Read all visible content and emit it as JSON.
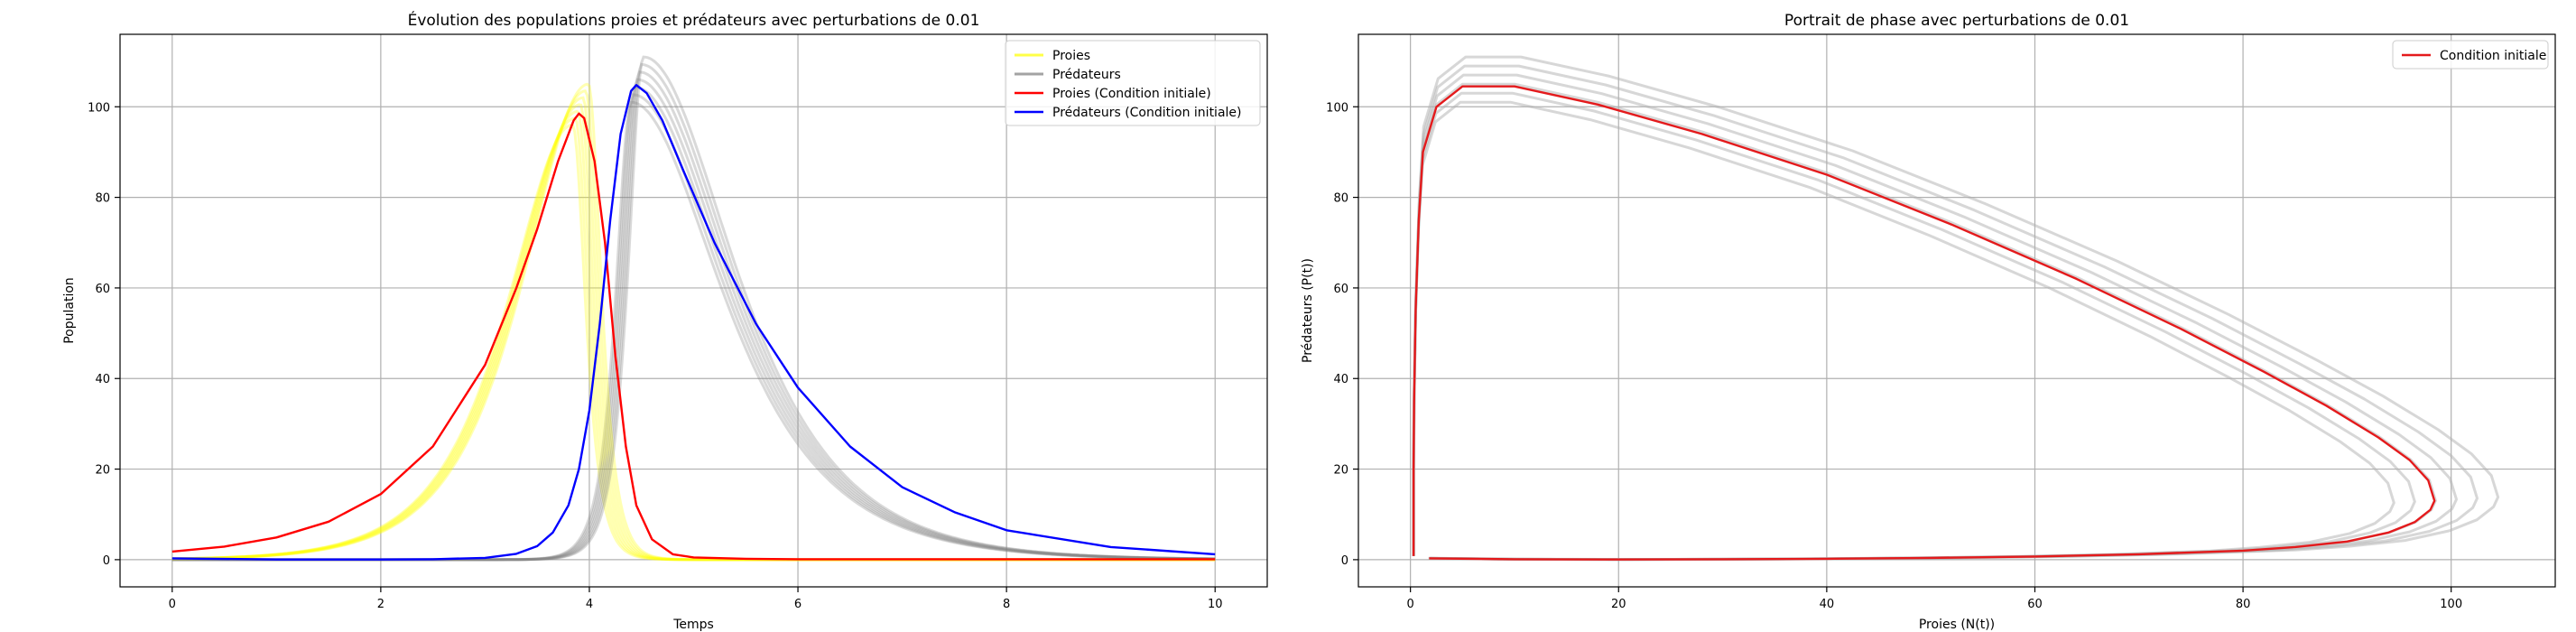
{
  "chart_data": [
    {
      "type": "line",
      "title": "Évolution des populations proies et prédateurs avec perturbations de 0.01",
      "xlabel": "Temps",
      "ylabel": "Population",
      "xlim": [
        -0.5,
        10.5
      ],
      "ylim": [
        -6,
        116
      ],
      "xticks": [
        0,
        2,
        4,
        6,
        8,
        10
      ],
      "yticks": [
        0,
        20,
        40,
        60,
        80,
        100
      ],
      "grid": true,
      "legend_position": "top-right",
      "legend": [
        "Proies",
        "Prédateurs",
        "Proies (Condition initiale)",
        "Prédateurs (Condition initiale)"
      ],
      "series": [
        {
          "name": "Proies",
          "color": "#ffff00",
          "alpha": 0.3,
          "peak_time": [
            3.84,
            3.99
          ],
          "peak_value": [
            96,
            105
          ]
        },
        {
          "name": "Prédateurs",
          "color": "#808080",
          "alpha": 0.3,
          "peak_time": [
            4.4,
            4.52
          ],
          "peak_value": [
            101,
            111
          ]
        },
        {
          "name": "Proies (Condition initiale)",
          "color": "#ff0000",
          "x": [
            0,
            0.5,
            1,
            1.5,
            2,
            2.5,
            3,
            3.3,
            3.5,
            3.7,
            3.85,
            3.9,
            3.95,
            4.05,
            4.15,
            4.25,
            4.35,
            4.45,
            4.6,
            4.8,
            5.0,
            5.5,
            6,
            7,
            8,
            10
          ],
          "values": [
            1.8,
            2.9,
            4.9,
            8.4,
            14.5,
            25,
            43,
            60,
            73,
            88,
            97,
            98.5,
            97.5,
            88,
            70,
            45,
            25,
            12,
            4.5,
            1.2,
            0.5,
            0.2,
            0.1,
            0.1,
            0.1,
            0.1
          ]
        },
        {
          "name": "Prédateurs (Condition initiale)",
          "color": "#0000ff",
          "x": [
            0,
            1,
            2,
            2.5,
            3,
            3.3,
            3.5,
            3.65,
            3.8,
            3.9,
            4.0,
            4.1,
            4.2,
            4.3,
            4.4,
            4.45,
            4.55,
            4.7,
            4.9,
            5.2,
            5.6,
            6,
            6.5,
            7,
            7.5,
            8,
            9,
            10
          ],
          "values": [
            0.3,
            0.05,
            0.05,
            0.1,
            0.4,
            1.3,
            3,
            6,
            12,
            20,
            33,
            52,
            75,
            94,
            103.5,
            104.8,
            103,
            97,
            86,
            70,
            52,
            38,
            25,
            16,
            10.5,
            6.5,
            2.8,
            1.2
          ]
        }
      ]
    },
    {
      "type": "line",
      "title": "Portrait de phase avec perturbations de 0.01",
      "xlabel": "Proies (N(t))",
      "ylabel": "Prédateurs (P(t))",
      "xlim": [
        -5,
        110
      ],
      "ylim": [
        -6,
        116
      ],
      "xticks": [
        0,
        20,
        40,
        60,
        80,
        100
      ],
      "yticks": [
        0,
        20,
        40,
        60,
        80,
        100
      ],
      "grid": true,
      "legend_position": "top-right",
      "legend": [
        "Condition initiale"
      ],
      "series": [
        {
          "name": "Condition initiale",
          "color": "#e41a1c",
          "x": [
            1.8,
            10,
            20,
            30,
            40,
            50,
            60,
            70,
            80,
            85,
            90,
            94,
            96.5,
            98,
            98.4,
            97.8,
            96,
            93,
            88,
            82,
            74,
            64,
            52,
            40,
            28,
            18,
            10,
            5,
            2.5,
            1.2,
            0.8,
            0.5,
            0.35,
            0.3,
            0.3,
            0.3,
            0.3
          ],
          "values": [
            0.3,
            0.1,
            0.05,
            0.1,
            0.2,
            0.4,
            0.7,
            1.2,
            2.0,
            2.8,
            4.0,
            6.0,
            8.3,
            11,
            13,
            17.5,
            22,
            27,
            34,
            41.5,
            51,
            62,
            74,
            85,
            94,
            100.5,
            104.5,
            104.5,
            100,
            90,
            75,
            55,
            35,
            20,
            10,
            3,
            0.8
          ]
        },
        {
          "name": "",
          "color": "#b0b0b0",
          "alpha": 0.5,
          "role": "perturbations",
          "peak_prey": [
            94.5,
            104.5
          ],
          "peak_predator": [
            101,
            111
          ]
        }
      ]
    }
  ]
}
